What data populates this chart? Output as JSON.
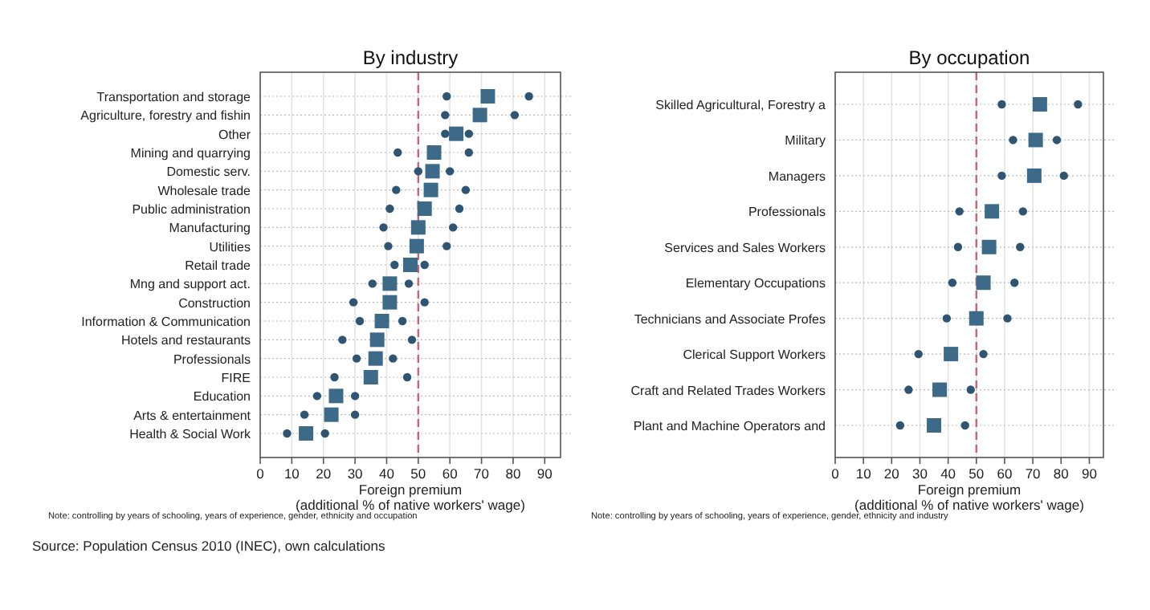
{
  "chart_data": [
    {
      "type": "scatter",
      "title": "By industry",
      "orientation": "horizontal",
      "xlabel": "Foreign premium\n(additional % of native workers' wage)",
      "categories": [
        "Transportation and storage",
        "Agriculture, forestry and fishin",
        "Other",
        "Mining and quarrying",
        "Domestic serv.",
        "Wholesale trade",
        "Public administration",
        "Manufacturing",
        "Utilities",
        "Retail trade",
        "Mng and support act.",
        "Construction",
        "Information & Communication",
        "Hotels and restaurants",
        "Professionals",
        "FIRE",
        "Education",
        "Arts & entertainment",
        "Health & Social Work"
      ],
      "series": [
        {
          "color": "#2f5573",
          "marker": "circle",
          "values": [
            59,
            58.5,
            58.5,
            43.5,
            50,
            43,
            41,
            39,
            40.5,
            42.5,
            35.5,
            29.5,
            31.5,
            26,
            30.5,
            23.5,
            18,
            14,
            8.5
          ]
        },
        {
          "color": "#2f5573",
          "marker": "circle",
          "values": [
            85,
            80.5,
            66,
            66,
            60,
            65,
            63,
            61,
            59,
            52,
            47,
            52,
            45,
            48,
            42,
            46.5,
            30,
            30,
            20.5
          ]
        },
        {
          "color": "#3e6a8a",
          "marker": "square",
          "values": [
            72,
            69.5,
            62,
            55,
            54.5,
            54,
            52,
            50,
            49.5,
            47.5,
            41,
            41,
            38.5,
            37,
            36.5,
            35,
            24,
            22.5,
            14.5
          ]
        }
      ],
      "xlim": [
        0,
        95
      ],
      "xticks": [
        0,
        10,
        20,
        30,
        40,
        50,
        60,
        70,
        80,
        90
      ],
      "grid": true,
      "ref_lines": [
        {
          "axis": "x",
          "value": 50,
          "color": "#c06878",
          "line_style": "dashed"
        }
      ],
      "annotations": [
        "Note: controlling by years of schooling, years of experience, gender, ethnicity and occupation",
        "Source: Population Census 2010 (INEC), own calculations"
      ]
    },
    {
      "type": "scatter",
      "title": "By occupation",
      "orientation": "horizontal",
      "xlabel": "Foreign premium\n(additional % of native workers' wage)",
      "categories": [
        "Skilled Agricultural, Forestry a",
        "Military",
        "Managers",
        "Professionals",
        "Services and Sales Workers",
        "Elementary Occupations",
        "Technicians and Associate Profes",
        "Clerical Support Workers",
        "Craft and Related Trades Workers",
        "Plant and Machine Operators and"
      ],
      "series": [
        {
          "color": "#2f5573",
          "marker": "circle",
          "values": [
            59,
            63,
            59,
            44,
            43.5,
            41.5,
            39.5,
            29.5,
            26,
            23
          ]
        },
        {
          "color": "#2f5573",
          "marker": "circle",
          "values": [
            86,
            78.5,
            81,
            66.5,
            65.5,
            63.5,
            61,
            52.5,
            48,
            46
          ]
        },
        {
          "color": "#3e6a8a",
          "marker": "square",
          "values": [
            72.5,
            71,
            70.5,
            55.5,
            54.5,
            52.5,
            50,
            41,
            37,
            35
          ]
        }
      ],
      "xlim": [
        0,
        95
      ],
      "xticks": [
        0,
        10,
        20,
        30,
        40,
        50,
        60,
        70,
        80,
        90
      ],
      "grid": true,
      "ref_lines": [
        {
          "axis": "x",
          "value": 50,
          "color": "#c06878",
          "line_style": "dashed"
        }
      ],
      "annotations": [
        "Note: controlling by years of schooling, years of experience, gender, ethnicity and industry"
      ]
    }
  ]
}
